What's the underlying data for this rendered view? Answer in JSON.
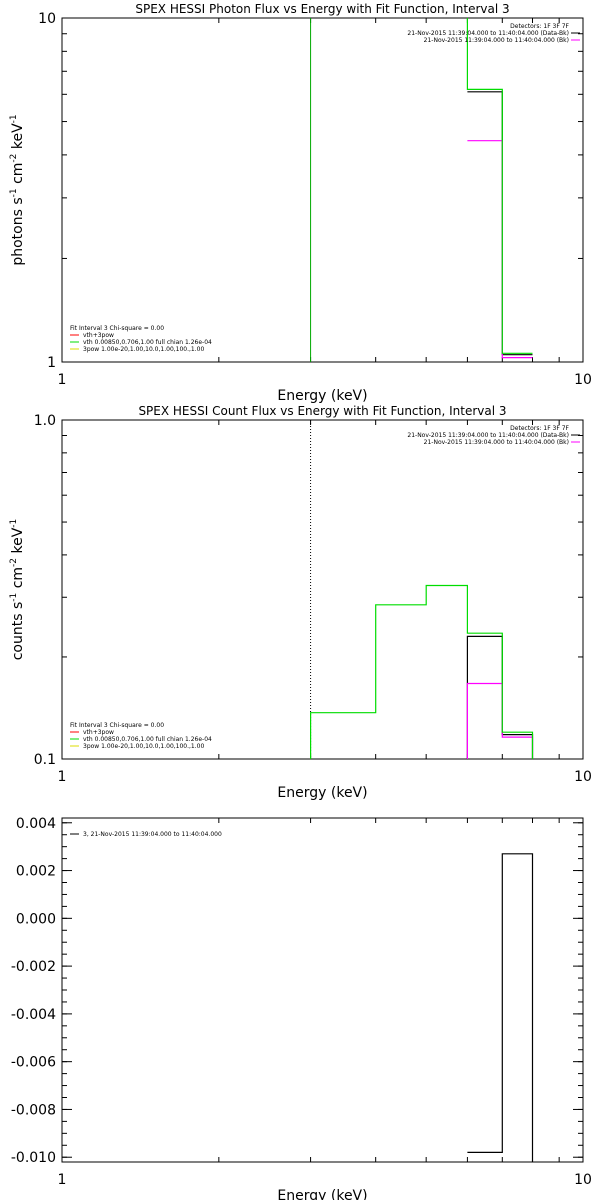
{
  "chart_data": [
    {
      "type": "line",
      "title": "SPEX HESSI Photon Flux vs Energy with Fit Function, Interval 3",
      "xlabel": "Energy (keV)",
      "ylabel_parts": [
        "photons s",
        "-1",
        " cm",
        "-2",
        " keV",
        "-1"
      ],
      "xscale": "log",
      "yscale": "log",
      "xlim": [
        1,
        10
      ],
      "ylim": [
        1,
        10
      ],
      "x_tick_labels": [
        {
          "value": 1,
          "label": "1"
        },
        {
          "value": 10,
          "label": "10"
        }
      ],
      "y_tick_labels": [
        {
          "value": 1,
          "label": "1"
        },
        {
          "value": 10,
          "label": "10"
        }
      ],
      "colors": {
        "data": "#000000",
        "bkg": "#ff00ff",
        "fit": "#00dd00",
        "marker": "#00aa00"
      },
      "header": [
        {
          "text": "Detectors: 1F 3F 7F",
          "swatch": ""
        },
        {
          "text": "21-Nov-2015 11:39:04.000 to 11:40:04.000 (Data-Bk)",
          "swatch": "#000000"
        },
        {
          "text": "21-Nov-2015 11:39:04.000 to 11:40:04.000 (Bk)",
          "swatch": "#ff00ff"
        }
      ],
      "legend": [
        {
          "text": "Fit Interval 3   Chi-square = 0.00",
          "swatch": ""
        },
        {
          "text": "vth+3pow",
          "swatch": "#ff0000"
        },
        {
          "text": "vth 0.00850,0.706,1.00   full chian 1.26e-04",
          "swatch": "#00dd00"
        },
        {
          "text": "3pow 1.00e-20,1.00,10.0,1.00,100.,1.00",
          "swatch": "#dddd00"
        }
      ],
      "vline": {
        "x": 3.0,
        "style": "solid",
        "color": "#00aa00"
      },
      "series": [
        {
          "name": "Data-Bk",
          "color": "#000000",
          "x": [
            6.0,
            7.0,
            7.0,
            8.0
          ],
          "y": [
            6.1,
            6.1,
            1.05,
            1.05
          ]
        },
        {
          "name": "Bk",
          "color": "#ff00ff",
          "x": [
            6.0,
            7.0,
            7.0,
            8.0
          ],
          "y": [
            4.4,
            4.4,
            1.03,
            1.03
          ]
        },
        {
          "name": "Fit",
          "color": "#00dd00",
          "x": [
            6.0,
            6.0,
            7.0,
            7.0,
            8.0
          ],
          "y": [
            10,
            6.2,
            6.2,
            1.06,
            1.06
          ]
        }
      ]
    },
    {
      "type": "line",
      "title": "SPEX HESSI Count Flux vs Energy with Fit Function, Interval 3",
      "xlabel": "Energy (keV)",
      "ylabel_parts": [
        "counts s",
        "-1",
        " cm",
        "-2",
        " keV",
        "-1"
      ],
      "xscale": "log",
      "yscale": "log",
      "xlim": [
        1,
        10
      ],
      "ylim": [
        0.1,
        1.0
      ],
      "x_tick_labels": [
        {
          "value": 1,
          "label": "1"
        },
        {
          "value": 10,
          "label": "10"
        }
      ],
      "y_tick_labels": [
        {
          "value": 0.1,
          "label": "0.1"
        },
        {
          "value": 1.0,
          "label": "1.0"
        }
      ],
      "colors": {
        "data": "#000000",
        "bkg": "#ff00ff",
        "fit": "#00dd00",
        "marker": "#000000"
      },
      "header": [
        {
          "text": "Detectors: 1F 3F 7F",
          "swatch": ""
        },
        {
          "text": "21-Nov-2015 11:39:04.000 to 11:40:04.000 (Data-Bk)",
          "swatch": "#000000"
        },
        {
          "text": "21-Nov-2015 11:39:04.000 to 11:40:04.000 (Bk)",
          "swatch": "#ff00ff"
        }
      ],
      "legend": [
        {
          "text": "Fit Interval 3   Chi-square = 0.00",
          "swatch": ""
        },
        {
          "text": "vth+3pow",
          "swatch": "#ff0000"
        },
        {
          "text": "vth 0.00850,0.706,1.00   full chian 1.26e-04",
          "swatch": "#00dd00"
        },
        {
          "text": "3pow 1.00e-20,1.00,10.0,1.00,100.,1.00",
          "swatch": "#dddd00"
        }
      ],
      "vline": {
        "x": 3.0,
        "style": "dotted",
        "color": "#000000"
      },
      "series": [
        {
          "name": "Data-Bk",
          "color": "#000000",
          "x": [
            6.0,
            6.0,
            7.0,
            7.0,
            8.0,
            8.0
          ],
          "y": [
            0.1,
            0.23,
            0.23,
            0.118,
            0.118,
            0.1
          ]
        },
        {
          "name": "Bk",
          "color": "#ff00ff",
          "x": [
            6.0,
            6.0,
            7.0,
            7.0,
            8.0,
            8.0
          ],
          "y": [
            0.1,
            0.167,
            0.167,
            0.116,
            0.116,
            0.1
          ]
        },
        {
          "name": "Fit",
          "color": "#00dd00",
          "x": [
            3.0,
            3.0,
            4.0,
            4.0,
            5.0,
            5.0,
            6.0,
            6.0,
            7.0,
            7.0,
            8.0,
            8.0
          ],
          "y": [
            0.1,
            0.137,
            0.137,
            0.285,
            0.285,
            0.325,
            0.325,
            0.235,
            0.235,
            0.12,
            0.12,
            0.1
          ]
        }
      ]
    },
    {
      "type": "line",
      "title": "",
      "xlabel": "Energy (keV)",
      "ylabel_parts": [],
      "xscale": "log",
      "yscale": "linear",
      "xlim": [
        1,
        10
      ],
      "ylim": [
        -0.0102,
        0.0042
      ],
      "x_tick_labels": [
        {
          "value": 1,
          "label": "1"
        },
        {
          "value": 10,
          "label": "10"
        }
      ],
      "y_tick_labels": [
        {
          "value": 0.004,
          "label": "0.004"
        },
        {
          "value": 0.002,
          "label": "0.002"
        },
        {
          "value": 0.0,
          "label": "0.000"
        },
        {
          "value": -0.002,
          "label": "-0.002"
        },
        {
          "value": -0.004,
          "label": "-0.004"
        },
        {
          "value": -0.006,
          "label": "-0.006"
        },
        {
          "value": -0.008,
          "label": "-0.008"
        },
        {
          "value": -0.01,
          "label": "-0.010"
        }
      ],
      "y_minor_step": 0.0005,
      "header": [],
      "legend": [
        {
          "text": "3, 21-Nov-2015 11:39:04.000 to 11:40:04.000",
          "swatch": "#000000"
        }
      ],
      "series": [
        {
          "name": "residual",
          "color": "#000000",
          "x": [
            6.0,
            7.0,
            7.0,
            8.0,
            8.0
          ],
          "y": [
            -0.0098,
            -0.0098,
            0.0027,
            0.0027,
            -0.0102
          ]
        }
      ]
    }
  ]
}
